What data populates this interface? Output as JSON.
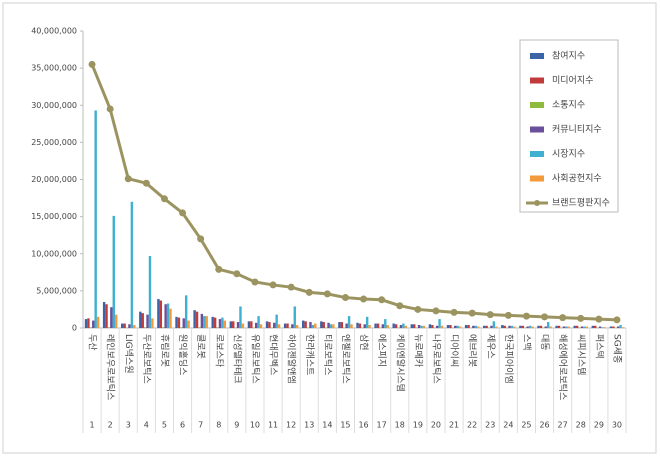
{
  "chart_data": {
    "type": "bar_line",
    "ranks": [
      "1",
      "2",
      "3",
      "4",
      "5",
      "6",
      "7",
      "8",
      "9",
      "10",
      "11",
      "12",
      "13",
      "14",
      "15",
      "16",
      "17",
      "18",
      "19",
      "20",
      "21",
      "22",
      "23",
      "24",
      "25",
      "26",
      "27",
      "28",
      "29",
      "30"
    ],
    "categories": [
      "두산",
      "레인보우로보틱스",
      "LIG넥스원",
      "두산로보틱스",
      "휴림로봇",
      "원익홀딩스",
      "클로봇",
      "로보스타",
      "신성델타테크",
      "유일로보틱스",
      "현대무벡스",
      "하이젠알앤엠",
      "한라캐스트",
      "티로보틱스",
      "엔젤로보틱스",
      "삼현",
      "에스피지",
      "케이엔알시스템",
      "뉴로메카",
      "나우로보틱스",
      "디아이씨",
      "에브리봇",
      "제우스",
      "한국피아이엠",
      "스맥",
      "대동",
      "해성에어로보틱스",
      "씨피시스템",
      "퍼스텍",
      "SG세종"
    ],
    "series": [
      {
        "name": "참여지수",
        "color": "#3b64a8",
        "values": [
          1200000,
          3500000,
          600000,
          2200000,
          3900000,
          1500000,
          2400000,
          1500000,
          900000,
          900000,
          900000,
          600000,
          1000000,
          900000,
          800000,
          700000,
          600000,
          600000,
          500000,
          500000,
          400000,
          400000,
          300000,
          400000,
          300000,
          300000,
          300000,
          300000,
          300000,
          200000
        ]
      },
      {
        "name": "미디어지수",
        "color": "#c23b3b",
        "values": [
          1300000,
          3200000,
          600000,
          2000000,
          3700000,
          1400000,
          2200000,
          1400000,
          900000,
          900000,
          800000,
          600000,
          900000,
          800000,
          800000,
          600000,
          600000,
          500000,
          500000,
          400000,
          400000,
          400000,
          300000,
          300000,
          300000,
          300000,
          300000,
          300000,
          300000,
          200000
        ]
      },
      {
        "name": "소통지수",
        "color": "#8fbb3c",
        "values": [
          100000,
          100000,
          50000,
          100000,
          100000,
          100000,
          100000,
          100000,
          50000,
          50000,
          50000,
          50000,
          50000,
          50000,
          50000,
          50000,
          50000,
          50000,
          50000,
          50000,
          50000,
          50000,
          50000,
          50000,
          50000,
          50000,
          50000,
          50000,
          50000,
          50000
        ]
      },
      {
        "name": "커뮤니티지수",
        "color": "#6b4e9c",
        "values": [
          1000000,
          2800000,
          500000,
          1800000,
          3200000,
          1300000,
          1900000,
          1200000,
          800000,
          700000,
          700000,
          500000,
          800000,
          700000,
          600000,
          500000,
          500000,
          400000,
          400000,
          300000,
          300000,
          300000,
          300000,
          300000,
          200000,
          200000,
          200000,
          200000,
          200000,
          200000
        ]
      },
      {
        "name": "시장지수",
        "color": "#3fb0cf",
        "values": [
          29300000,
          15100000,
          17000000,
          9700000,
          3300000,
          4400000,
          1600000,
          1400000,
          2900000,
          1600000,
          1800000,
          2900000,
          400000,
          500000,
          1600000,
          1500000,
          1200000,
          600000,
          300000,
          1200000,
          300000,
          300000,
          900000,
          300000,
          300000,
          800000,
          200000,
          200000,
          100000,
          400000
        ]
      },
      {
        "name": "사회공헌지수",
        "color": "#f39a3c",
        "values": [
          1500000,
          1800000,
          400000,
          1300000,
          2600000,
          1000000,
          1600000,
          1000000,
          600000,
          500000,
          500000,
          400000,
          600000,
          500000,
          500000,
          400000,
          400000,
          300000,
          300000,
          300000,
          200000,
          200000,
          200000,
          200000,
          200000,
          200000,
          200000,
          200000,
          100000,
          100000
        ]
      },
      {
        "name": "브랜드평판지수",
        "color": "#9c9460",
        "line": true,
        "values": [
          35500000,
          29500000,
          20100000,
          19500000,
          17400000,
          15500000,
          12000000,
          7900000,
          7300000,
          6200000,
          5800000,
          5500000,
          4800000,
          4600000,
          4100000,
          3900000,
          3800000,
          3000000,
          2500000,
          2300000,
          2100000,
          2000000,
          1800000,
          1700000,
          1600000,
          1500000,
          1400000,
          1300000,
          1200000,
          1100000
        ]
      }
    ],
    "ylim": [
      0,
      40000000
    ],
    "yticks": [
      0,
      {
        "value": 5000000,
        "label": "5,000,000"
      },
      {
        "value": 10000000,
        "label": "10,000,000"
      },
      {
        "value": 15000000,
        "label": "15,000,000"
      },
      {
        "value": 20000000,
        "label": "20,000,000"
      },
      {
        "value": 25000000,
        "label": "25,000,000"
      },
      {
        "value": 30000000,
        "label": "30,000,000"
      },
      {
        "value": 35000000,
        "label": "35,000,000"
      },
      {
        "value": 40000000,
        "label": "40,000,000"
      }
    ],
    "legend": "top-right"
  }
}
